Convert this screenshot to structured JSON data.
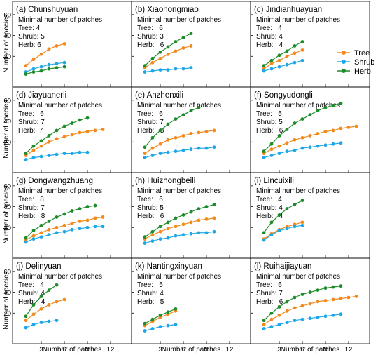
{
  "figure": {
    "ylabel": "Number of species",
    "xlabel": "Number of patches",
    "legend": [
      {
        "name": "Tree",
        "color": "#f28a1e"
      },
      {
        "name": "Shrub",
        "color": "#1ea7e6"
      },
      {
        "name": "Herb",
        "color": "#1e8c2a"
      }
    ],
    "minimal_label": "Minimal number of patches"
  },
  "chart_data": [
    {
      "type": "line",
      "title": "(a) Chunshuyuan",
      "xlim": [
        0,
        14
      ],
      "ylim": [
        0,
        70
      ],
      "xticks": [
        3,
        6,
        9,
        12
      ],
      "yticks": [
        20,
        40,
        60
      ],
      "minimal": {
        "tree": "Tree: 4",
        "shrub": "Shrub: 5",
        "herb": "Herb: 6"
      },
      "series": [
        {
          "name": "Tree",
          "x": [
            1,
            2,
            3,
            4,
            5,
            6
          ],
          "y": [
            11,
            17,
            22,
            27,
            30,
            32
          ]
        },
        {
          "name": "Shrub",
          "x": [
            1,
            2,
            3,
            4,
            5,
            6
          ],
          "y": [
            5,
            8,
            10,
            12,
            13,
            14
          ]
        },
        {
          "name": "Herb",
          "x": [
            1,
            2,
            3,
            4,
            5,
            6
          ],
          "y": [
            3,
            5,
            6,
            8,
            9,
            10
          ]
        }
      ]
    },
    {
      "type": "line",
      "title": "(b) Xiaohongmiao",
      "xlim": [
        0,
        14
      ],
      "ylim": [
        0,
        70
      ],
      "xticks": [
        3,
        6,
        9,
        12
      ],
      "yticks": [
        20,
        40,
        60
      ],
      "minimal": {
        "tree": "Tree:   6",
        "shrub": "Shrub: 3",
        "herb": "Herb:   6"
      },
      "series": [
        {
          "name": "Tree",
          "x": [
            1,
            2,
            3,
            4,
            5,
            6,
            7
          ],
          "y": [
            9,
            14,
            18,
            22,
            25,
            28,
            30
          ]
        },
        {
          "name": "Shrub",
          "x": [
            1,
            2,
            3,
            4,
            5,
            6,
            7
          ],
          "y": [
            5,
            6,
            7,
            7,
            8,
            8,
            9
          ]
        },
        {
          "name": "Herb",
          "x": [
            1,
            2,
            3,
            4,
            5,
            6,
            7
          ],
          "y": [
            11,
            18,
            24,
            29,
            34,
            38,
            42
          ]
        }
      ]
    },
    {
      "type": "line",
      "title": "(c) Jindianhuayuan",
      "xlim": [
        0,
        14
      ],
      "ylim": [
        0,
        70
      ],
      "xticks": [
        3,
        6,
        9,
        12
      ],
      "yticks": [
        20,
        40,
        60
      ],
      "minimal": {
        "tree": "Tree:   4",
        "shrub": "Shrub: 4",
        "herb": "Herb:   4"
      },
      "series": [
        {
          "name": "Tree",
          "x": [
            1,
            2,
            3,
            4,
            5,
            6
          ],
          "y": [
            8,
            13,
            16,
            20,
            23,
            26
          ]
        },
        {
          "name": "Shrub",
          "x": [
            1,
            2,
            3,
            4,
            5,
            6
          ],
          "y": [
            6,
            8,
            10,
            12,
            14,
            16
          ]
        },
        {
          "name": "Herb",
          "x": [
            1,
            2,
            3,
            4,
            5,
            6
          ],
          "y": [
            11,
            16,
            21,
            25,
            30,
            34
          ]
        }
      ]
    },
    {
      "type": "line",
      "title": "(d) Jiayuanerli",
      "xlim": [
        0,
        14
      ],
      "ylim": [
        0,
        70
      ],
      "xticks": [
        3,
        6,
        9,
        12
      ],
      "yticks": [
        20,
        40,
        60
      ],
      "minimal": {
        "tree": "Tree:   6",
        "shrub": "Shrub: 7",
        "herb": "Herb:  7"
      },
      "series": [
        {
          "name": "Tree",
          "x": [
            1,
            2,
            3,
            4,
            5,
            6,
            7,
            8,
            9,
            10,
            11
          ],
          "y": [
            7,
            12,
            16,
            20,
            23,
            25,
            27,
            29,
            30,
            31,
            32
          ]
        },
        {
          "name": "Shrub",
          "x": [
            1,
            2,
            3,
            4,
            5,
            6,
            7,
            8,
            9
          ],
          "y": [
            3,
            5,
            6,
            7,
            8,
            9,
            9,
            10,
            10
          ]
        },
        {
          "name": "Herb",
          "x": [
            1,
            2,
            3,
            4,
            5,
            6,
            7,
            8,
            9
          ],
          "y": [
            9,
            16,
            21,
            26,
            31,
            35,
            38,
            41,
            43
          ]
        }
      ]
    },
    {
      "type": "line",
      "title": "(e) Anzhenxili",
      "xlim": [
        0,
        14
      ],
      "ylim": [
        0,
        70
      ],
      "xticks": [
        3,
        6,
        9,
        12
      ],
      "yticks": [
        20,
        40,
        60
      ],
      "minimal": {
        "tree": "Tree:   6",
        "shrub": "Shrub: 7",
        "herb": "Herb:   8"
      },
      "series": [
        {
          "name": "Tree",
          "x": [
            1,
            2,
            3,
            4,
            5,
            6,
            7,
            8,
            9,
            10
          ],
          "y": [
            9,
            14,
            18,
            22,
            24,
            26,
            28,
            29,
            30,
            31
          ]
        },
        {
          "name": "Shrub",
          "x": [
            1,
            2,
            3,
            4,
            5,
            6,
            7,
            8,
            9,
            10
          ],
          "y": [
            5,
            7,
            9,
            10,
            11,
            12,
            13,
            14,
            14,
            15
          ]
        },
        {
          "name": "Herb",
          "x": [
            1,
            2,
            3,
            4,
            5,
            6,
            7,
            8
          ],
          "y": [
            15,
            24,
            31,
            37,
            42,
            46,
            50,
            53
          ]
        }
      ]
    },
    {
      "type": "line",
      "title": "(f) Songyudongli",
      "xlim": [
        0,
        14
      ],
      "ylim": [
        0,
        70
      ],
      "xticks": [
        3,
        6,
        9,
        12
      ],
      "yticks": [
        20,
        40,
        60
      ],
      "minimal": {
        "tree": "Tree:   5",
        "shrub": "Shrub: 5",
        "herb": "Herb:   6"
      },
      "series": [
        {
          "name": "Tree",
          "x": [
            1,
            2,
            3,
            4,
            5,
            6,
            7,
            8,
            9,
            10,
            11,
            12,
            13
          ],
          "y": [
            9,
            13,
            16,
            19,
            22,
            24,
            26,
            28,
            30,
            31,
            33,
            34,
            35
          ]
        },
        {
          "name": "Shrub",
          "x": [
            1,
            2,
            3,
            4,
            5,
            6,
            7,
            8,
            9,
            10,
            11
          ],
          "y": [
            5,
            7,
            9,
            11,
            12,
            14,
            15,
            16,
            17,
            18,
            19
          ]
        },
        {
          "name": "Herb",
          "x": [
            1,
            2,
            3,
            4,
            5,
            6,
            7,
            8,
            9,
            10,
            11
          ],
          "y": [
            11,
            18,
            26,
            32,
            38,
            42,
            46,
            50,
            53,
            55,
            57
          ]
        }
      ]
    },
    {
      "type": "line",
      "title": "(g) Dongwangzhuang",
      "xlim": [
        0,
        14
      ],
      "ylim": [
        0,
        70
      ],
      "xticks": [
        3,
        6,
        9,
        12
      ],
      "yticks": [
        20,
        40,
        60
      ],
      "minimal": {
        "tree": "Tree:   8",
        "shrub": "Shrub: 7",
        "herb": "Herb:   8"
      },
      "series": [
        {
          "name": "Tree",
          "x": [
            1,
            2,
            3,
            4,
            5,
            6,
            7,
            8,
            9,
            10,
            11
          ],
          "y": [
            8,
            12,
            15,
            18,
            20,
            22,
            24,
            26,
            27,
            29,
            30
          ]
        },
        {
          "name": "Shrub",
          "x": [
            1,
            2,
            3,
            4,
            5,
            6,
            7,
            8,
            9,
            10,
            11
          ],
          "y": [
            6,
            9,
            11,
            13,
            15,
            16,
            18,
            19,
            20,
            21,
            21
          ]
        },
        {
          "name": "Herb",
          "x": [
            1,
            2,
            3,
            4,
            5,
            6,
            7,
            8,
            9,
            10
          ],
          "y": [
            10,
            17,
            22,
            26,
            30,
            33,
            36,
            38,
            40,
            41
          ]
        }
      ]
    },
    {
      "type": "line",
      "title": "(h) Huizhongbeili",
      "xlim": [
        0,
        14
      ],
      "ylim": [
        0,
        70
      ],
      "xticks": [
        3,
        6,
        9,
        12
      ],
      "yticks": [
        20,
        40,
        60
      ],
      "minimal": {
        "tree": "Tree:   6",
        "shrub": "Shrub: 5",
        "herb": "Herb:   6"
      },
      "series": [
        {
          "name": "Tree",
          "x": [
            1,
            2,
            3,
            4,
            5,
            6,
            7,
            8,
            9,
            10
          ],
          "y": [
            9,
            13,
            16,
            19,
            21,
            23,
            25,
            27,
            28,
            29
          ]
        },
        {
          "name": "Shrub",
          "x": [
            1,
            2,
            3,
            4,
            5,
            6,
            7,
            8,
            9,
            10
          ],
          "y": [
            5,
            7,
            9,
            10,
            12,
            13,
            14,
            15,
            15,
            16
          ]
        },
        {
          "name": "Herb",
          "x": [
            1,
            2,
            3,
            4,
            5,
            6,
            7,
            8,
            9,
            10
          ],
          "y": [
            11,
            16,
            21,
            25,
            29,
            32,
            35,
            38,
            40,
            42
          ]
        }
      ]
    },
    {
      "type": "line",
      "title": "(i) Lincuixili",
      "xlim": [
        0,
        14
      ],
      "ylim": [
        0,
        70
      ],
      "xticks": [
        3,
        6,
        9,
        12
      ],
      "yticks": [
        20,
        40,
        60
      ],
      "minimal": {
        "tree": "Tree:   4",
        "shrub": "Shrub: 4",
        "herb": "Herb:   4"
      },
      "series": [
        {
          "name": "Tree",
          "x": [
            1,
            2,
            3,
            4,
            5,
            6
          ],
          "y": [
            9,
            14,
            18,
            21,
            23,
            25
          ]
        },
        {
          "name": "Shrub",
          "x": [
            1,
            2,
            3,
            4,
            5,
            6
          ],
          "y": [
            8,
            13,
            17,
            19,
            21,
            22
          ]
        },
        {
          "name": "Herb",
          "x": [
            1,
            2,
            3,
            4,
            5,
            6
          ],
          "y": [
            15,
            25,
            32,
            38,
            42,
            46
          ]
        }
      ]
    },
    {
      "type": "line",
      "title": "(j) Delinyuan",
      "xlim": [
        0,
        14
      ],
      "ylim": [
        0,
        70
      ],
      "xticks": [
        3,
        6,
        9,
        12
      ],
      "yticks": [
        20,
        40,
        60
      ],
      "minimal": {
        "tree": "Tree:   4",
        "shrub": "Shrub: 4",
        "herb": "Herb:   4"
      },
      "series": [
        {
          "name": "Tree",
          "x": [
            1,
            2,
            3,
            4,
            5,
            6
          ],
          "y": [
            13,
            19,
            24,
            28,
            31,
            33
          ]
        },
        {
          "name": "Shrub",
          "x": [
            1,
            2,
            3,
            4,
            5
          ],
          "y": [
            6,
            9,
            11,
            12,
            13
          ]
        },
        {
          "name": "Herb",
          "x": [
            1,
            2,
            3,
            4,
            5
          ],
          "y": [
            17,
            28,
            36,
            42,
            47
          ]
        }
      ]
    },
    {
      "type": "line",
      "title": "(k) Nantingxinyuan",
      "xlim": [
        0,
        14
      ],
      "ylim": [
        0,
        70
      ],
      "xticks": [
        3,
        6,
        9,
        12
      ],
      "yticks": [
        20,
        40,
        60
      ],
      "minimal": {
        "tree": "Tree:   5",
        "shrub": "Shrub: 4",
        "herb": "Herb:   5"
      },
      "series": [
        {
          "name": "Tree",
          "x": [
            1,
            2,
            3,
            4,
            5
          ],
          "y": [
            8,
            12,
            16,
            19,
            22
          ]
        },
        {
          "name": "Shrub",
          "x": [
            1,
            2,
            3,
            4,
            5
          ],
          "y": [
            3,
            5,
            7,
            8,
            9
          ]
        },
        {
          "name": "Herb",
          "x": [
            1,
            2,
            3,
            4,
            5
          ],
          "y": [
            10,
            14,
            18,
            21,
            24
          ]
        }
      ]
    },
    {
      "type": "line",
      "title": "(l) Ruihaijiayuan",
      "xlim": [
        0,
        14
      ],
      "ylim": [
        0,
        70
      ],
      "xticks": [
        3,
        6,
        9,
        12
      ],
      "yticks": [
        20,
        40,
        60
      ],
      "minimal": {
        "tree": "Tree:   6",
        "shrub": "Shrub: 7",
        "herb": "Herb:   6"
      },
      "series": [
        {
          "name": "Tree",
          "x": [
            1,
            2,
            3,
            4,
            5,
            6,
            7,
            8,
            9,
            10,
            11,
            12,
            13
          ],
          "y": [
            9,
            14,
            18,
            22,
            25,
            27,
            29,
            31,
            32,
            33,
            34,
            35,
            36
          ]
        },
        {
          "name": "Shrub",
          "x": [
            1,
            2,
            3,
            4,
            5,
            6,
            7,
            8,
            9,
            10,
            11
          ],
          "y": [
            5,
            7,
            9,
            11,
            13,
            14,
            15,
            16,
            17,
            18,
            19
          ]
        },
        {
          "name": "Herb",
          "x": [
            1,
            2,
            3,
            4,
            5,
            6,
            7,
            8,
            9,
            10,
            11
          ],
          "y": [
            13,
            20,
            26,
            31,
            35,
            38,
            40,
            42,
            44,
            45,
            46
          ]
        }
      ]
    }
  ]
}
